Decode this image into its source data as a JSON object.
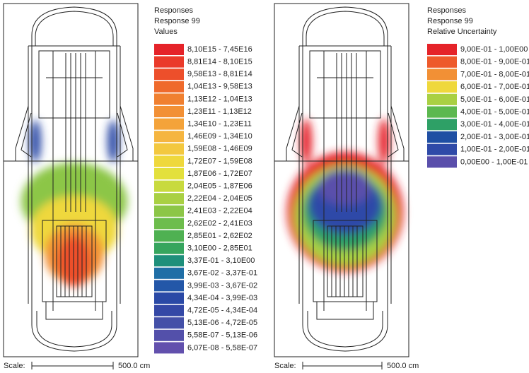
{
  "panels": [
    {
      "legend": {
        "title": "Responses",
        "subtitle": "Response 99",
        "quantity": "Values",
        "entries": [
          {
            "label": "8,10E15 - 7,45E16",
            "color": "#e52329"
          },
          {
            "label": "8,81E14 - 8,10E15",
            "color": "#ea3a2a"
          },
          {
            "label": "9,58E13 - 8,81E14",
            "color": "#ed4f2b"
          },
          {
            "label": "1,04E13 - 9,58E13",
            "color": "#ef6a2c"
          },
          {
            "label": "1,13E12 - 1,04E13",
            "color": "#f08030"
          },
          {
            "label": "1,23E11 - 1,13E12",
            "color": "#f29035"
          },
          {
            "label": "1,34E10 - 1,23E11",
            "color": "#f4a33a"
          },
          {
            "label": "1,46E09 - 1,34E10",
            "color": "#f5b540"
          },
          {
            "label": "1,59E08 - 1,46E09",
            "color": "#f3c83f"
          },
          {
            "label": "1,72E07 - 1,59E08",
            "color": "#efd83c"
          },
          {
            "label": "1,87E06 - 1,72E07",
            "color": "#e3e03c"
          },
          {
            "label": "2,04E05 - 1,87E06",
            "color": "#c8da3e"
          },
          {
            "label": "2,22E04 - 2,04E05",
            "color": "#a9d043"
          },
          {
            "label": "2,41E03 - 2,22E04",
            "color": "#8cc647"
          },
          {
            "label": "2,62E02 - 2,41E03",
            "color": "#6dbd4c"
          },
          {
            "label": "2,85E01 - 2,62E02",
            "color": "#4fb152"
          },
          {
            "label": "3,10E00 - 2,85E01",
            "color": "#36a55e"
          },
          {
            "label": "3,37E-01 - 3,10E00",
            "color": "#1e8f7b"
          },
          {
            "label": "3,67E-02 - 3,37E-01",
            "color": "#1f6ea6"
          },
          {
            "label": "3,99E-03 - 3,67E-02",
            "color": "#2357a8"
          },
          {
            "label": "4,34E-04 - 3,99E-03",
            "color": "#2a49a6"
          },
          {
            "label": "4,72E-05 - 4,34E-04",
            "color": "#3448a6"
          },
          {
            "label": "5,13E-06 - 4,72E-05",
            "color": "#4450a8"
          },
          {
            "label": "5,58E-07 - 5,13E-06",
            "color": "#5350aa"
          },
          {
            "label": "6,07E-08 - 5,58E-07",
            "color": "#6250ad"
          }
        ]
      },
      "scale": {
        "label": "Scale:",
        "length": "500.0 cm"
      }
    },
    {
      "legend": {
        "title": "Responses",
        "subtitle": "Response 99",
        "quantity": "Relative Uncertainty",
        "entries": [
          {
            "label": "9,00E-01 - 1,00E00",
            "color": "#e52329"
          },
          {
            "label": "8,00E-01 - 9,00E-01",
            "color": "#ee5a2b"
          },
          {
            "label": "7,00E-01 - 8,00E-01",
            "color": "#f29035"
          },
          {
            "label": "6,00E-01 - 7,00E-01",
            "color": "#efd83c"
          },
          {
            "label": "5,00E-01 - 6,00E-01",
            "color": "#a9d043"
          },
          {
            "label": "4,00E-01 - 5,00E-01",
            "color": "#5cb84f"
          },
          {
            "label": "3,00E-01 - 4,00E-01",
            "color": "#2ea066"
          },
          {
            "label": "2,00E-01 - 3,00E-01",
            "color": "#1f4fa3"
          },
          {
            "label": "1,00E-01 - 2,00E-01",
            "color": "#2f4aa8"
          },
          {
            "label": "0,00E00 - 1,00E-01",
            "color": "#5a4fab"
          }
        ]
      },
      "scale": {
        "label": "Scale:",
        "length": "500.0 cm"
      }
    }
  ]
}
